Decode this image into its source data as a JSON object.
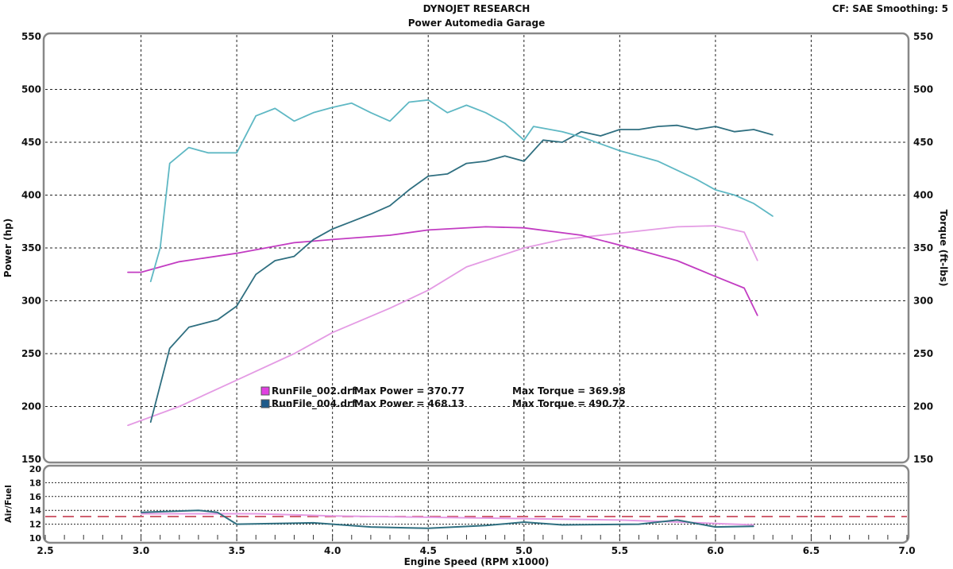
{
  "header": {
    "title": "DYNOJET RESEARCH",
    "subtitle": "Power Automedia Garage",
    "settings": "CF: SAE  Smoothing: 5"
  },
  "colors": {
    "run002_power": "#e49be4",
    "run002_torque": "#c23cc2",
    "run004_power": "#2f6f80",
    "run004_torque": "#5fb8c4",
    "afr_target": "#d06070"
  },
  "chart_data": [
    {
      "type": "line",
      "xlabel": "Engine Speed (RPM x1000)",
      "ylabel": "Power (hp)",
      "y2label": "Torque (ft-lbs)",
      "xlim": [
        2.5,
        7.0
      ],
      "ylim": [
        150,
        550
      ],
      "y2lim": [
        150,
        550
      ],
      "xticks": [
        "2.5",
        "3.0",
        "3.5",
        "4.0",
        "4.5",
        "5.0",
        "5.5",
        "6.0",
        "6.5",
        "7.0"
      ],
      "yticks": [
        "150",
        "200",
        "250",
        "300",
        "350",
        "400",
        "450",
        "500",
        "550"
      ],
      "grid": true,
      "legend": {
        "placement": "center-left",
        "entries": [
          {
            "file": "RunFile_002.drf",
            "max_power": "Max Power = 370.77",
            "max_torque": "Max Torque = 369.98",
            "color": "#e040e0"
          },
          {
            "file": "RunFile_004.drf",
            "max_power": "Max Power = 468.13",
            "max_torque": "Max Torque = 490.72",
            "color": "#1e5a8a"
          }
        ]
      },
      "series": [
        {
          "id": "run002_power",
          "x": [
            2.93,
            3.2,
            3.5,
            3.8,
            4.0,
            4.3,
            4.5,
            4.7,
            5.0,
            5.2,
            5.5,
            5.8,
            6.0,
            6.15,
            6.22
          ],
          "y": [
            182,
            200,
            225,
            250,
            270,
            293,
            310,
            332,
            350,
            358,
            364,
            370,
            371,
            365,
            338
          ]
        },
        {
          "id": "run002_torque",
          "x": [
            2.93,
            3.0,
            3.2,
            3.5,
            3.8,
            4.0,
            4.3,
            4.5,
            4.8,
            5.0,
            5.3,
            5.6,
            5.8,
            6.0,
            6.15,
            6.22
          ],
          "y": [
            327,
            327,
            337,
            345,
            355,
            358,
            362,
            367,
            370,
            369,
            362,
            348,
            338,
            323,
            312,
            286
          ]
        },
        {
          "id": "run004_power",
          "x": [
            3.05,
            3.15,
            3.25,
            3.4,
            3.5,
            3.6,
            3.7,
            3.8,
            3.9,
            4.0,
            4.1,
            4.2,
            4.3,
            4.4,
            4.5,
            4.6,
            4.7,
            4.8,
            4.9,
            5.0,
            5.1,
            5.2,
            5.3,
            5.4,
            5.5,
            5.6,
            5.7,
            5.8,
            5.9,
            6.0,
            6.1,
            6.2,
            6.3
          ],
          "y": [
            185,
            255,
            275,
            282,
            295,
            325,
            338,
            342,
            358,
            368,
            375,
            382,
            390,
            405,
            418,
            420,
            430,
            432,
            437,
            432,
            452,
            450,
            460,
            456,
            462,
            462,
            465,
            466,
            462,
            465,
            460,
            462,
            457
          ]
        },
        {
          "id": "run004_torque",
          "x": [
            3.05,
            3.1,
            3.15,
            3.25,
            3.35,
            3.5,
            3.6,
            3.7,
            3.8,
            3.9,
            4.0,
            4.1,
            4.2,
            4.3,
            4.4,
            4.5,
            4.6,
            4.7,
            4.8,
            4.9,
            5.0,
            5.05,
            5.2,
            5.3,
            5.5,
            5.7,
            5.9,
            6.0,
            6.1,
            6.2,
            6.3
          ],
          "y": [
            318,
            350,
            430,
            445,
            440,
            440,
            475,
            482,
            470,
            478,
            483,
            487,
            478,
            470,
            488,
            490,
            478,
            485,
            478,
            468,
            452,
            465,
            460,
            455,
            442,
            432,
            415,
            405,
            400,
            392,
            380
          ]
        }
      ]
    },
    {
      "type": "line",
      "ylabel": "Air/Fuel",
      "xlim": [
        2.5,
        7.0
      ],
      "ylim": [
        10,
        20
      ],
      "yticks": [
        "10",
        "12",
        "14",
        "16",
        "18",
        "20"
      ],
      "target": 13.1,
      "series": [
        {
          "id": "run002_power",
          "x": [
            3.0,
            3.6,
            4.0,
            4.5,
            5.0,
            5.5,
            6.0,
            6.2
          ],
          "y": [
            13.5,
            13.5,
            13.2,
            13.0,
            12.8,
            12.6,
            12.1,
            11.9
          ]
        },
        {
          "id": "run004_power",
          "x": [
            3.0,
            3.3,
            3.4,
            3.5,
            3.9,
            4.2,
            4.5,
            4.8,
            5.0,
            5.2,
            5.6,
            5.8,
            6.0,
            6.2
          ],
          "y": [
            13.7,
            14.0,
            13.7,
            12.0,
            12.2,
            11.6,
            11.4,
            11.8,
            12.3,
            11.9,
            12.0,
            12.6,
            11.6,
            11.7
          ]
        }
      ]
    }
  ]
}
